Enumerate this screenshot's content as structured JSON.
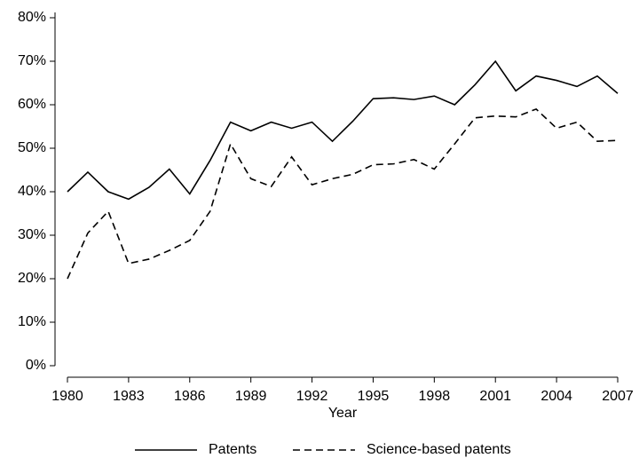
{
  "chart_data": {
    "type": "line",
    "xlabel": "Year",
    "x": [
      1980,
      1981,
      1982,
      1983,
      1984,
      1985,
      1986,
      1987,
      1988,
      1989,
      1990,
      1991,
      1992,
      1993,
      1994,
      1995,
      1996,
      1997,
      1998,
      1999,
      2000,
      2001,
      2002,
      2003,
      2004,
      2005,
      2006,
      2007
    ],
    "series": [
      {
        "name": "Patents",
        "color": "#000000",
        "line_style": "solid",
        "values": [
          40,
          44.5,
          40,
          38.3,
          41,
          45.2,
          39.5,
          47.2,
          56,
          54,
          56,
          54.6,
          56,
          51.6,
          56.2,
          61.4,
          61.6,
          61.2,
          62,
          60,
          64.6,
          70,
          63.2,
          66.6,
          65.6,
          64.2,
          66.6,
          62.6
        ]
      },
      {
        "name": "Science-based patents",
        "color": "#000000",
        "line_style": "dashed",
        "values": [
          20,
          30.5,
          35.5,
          23.5,
          24.5,
          26.5,
          28.8,
          35.5,
          51,
          43,
          41.2,
          48,
          41.6,
          43,
          44,
          46.2,
          46.4,
          47.4,
          45.2,
          51,
          57,
          57.4,
          57.2,
          59,
          54.6,
          56,
          51.6,
          51.8
        ]
      }
    ],
    "xlim": [
      1980,
      2007
    ],
    "xticks": [
      1980,
      1983,
      1986,
      1989,
      1992,
      1995,
      1998,
      2001,
      2004,
      2007
    ],
    "ylim": [
      0,
      80
    ],
    "yticks": [
      {
        "value": 0,
        "label": "0%"
      },
      {
        "value": 10,
        "label": "10%"
      },
      {
        "value": 20,
        "label": "20%"
      },
      {
        "value": 30,
        "label": "30%"
      },
      {
        "value": 40,
        "label": "40%"
      },
      {
        "value": 50,
        "label": "50%"
      },
      {
        "value": 60,
        "label": "60%"
      },
      {
        "value": 70,
        "label": "70%"
      },
      {
        "value": 80,
        "label": "80%"
      }
    ],
    "grid": false,
    "legend": "bottom"
  }
}
